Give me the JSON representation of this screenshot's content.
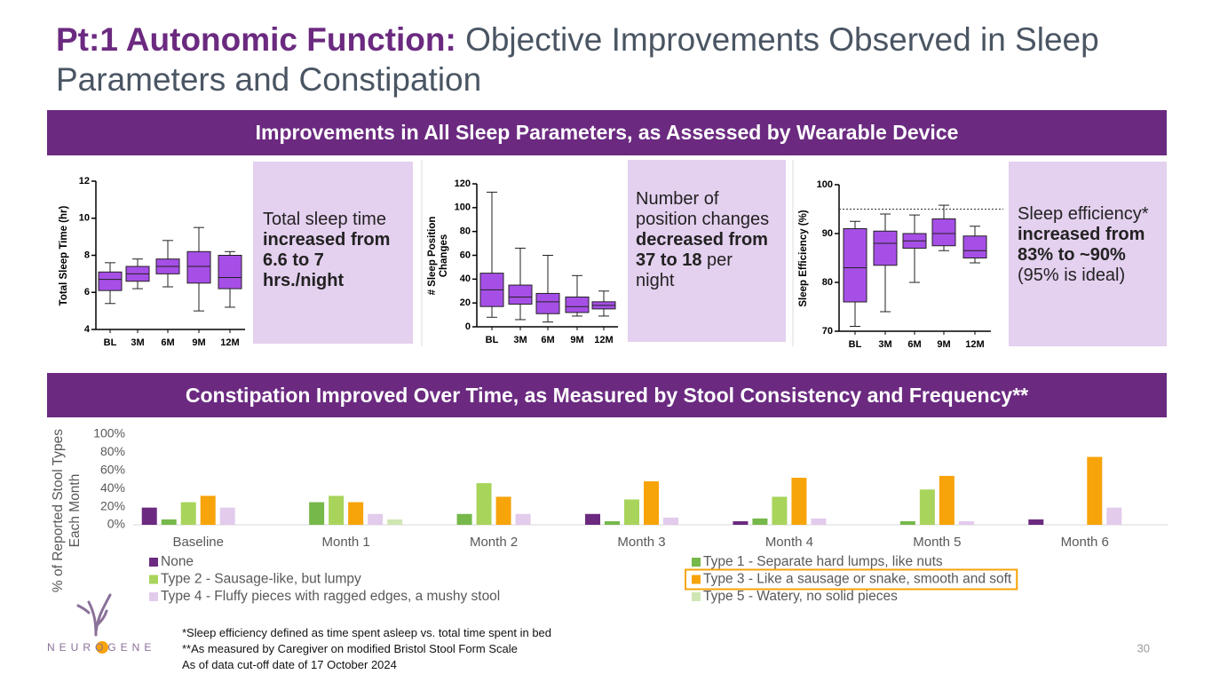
{
  "slide": {
    "title_bold": "Pt:1 Autonomic Function:",
    "title_rest": "Objective Improvements Observed in Sleep Parameters and Constipation",
    "banner_sleep": "Improvements in All Sleep Parameters, as Assessed by Wearable Device",
    "banner_constipation": "Constipation Improved Over Time, as Measured by Stool Consistency and Frequency**",
    "callouts": [
      {
        "runs": [
          {
            "text": "Total sleep time ",
            "style": "normal"
          },
          {
            "text": "increased from 6.6 to 7 hrs./night",
            "style": "bold"
          }
        ]
      },
      {
        "runs": [
          {
            "text": "Number of position changes ",
            "style": "normal"
          },
          {
            "text": "decreased from 37 to 18",
            "style": "bold"
          },
          {
            "text": " per night",
            "style": "normal"
          }
        ]
      },
      {
        "runs": [
          {
            "text": "Sleep efficiency* ",
            "style": "normal"
          },
          {
            "text": "increased from 83% to ~90%",
            "style": "bold"
          },
          {
            "text": " (95% is ideal)",
            "style": "normal"
          }
        ]
      }
    ],
    "footnotes": [
      "*Sleep efficiency defined as time spent asleep vs. total time spent in bed",
      "**As measured by Caregiver on modified Bristol Stool Form Scale",
      "As of data cut-off date of 17 October 2024"
    ],
    "page_number": "30",
    "logo": "NEUROGENE"
  },
  "chart_data": [
    {
      "type": "box",
      "y_label": "Total Sleep Time (hr)",
      "categories": [
        "BL",
        "3M",
        "6M",
        "9M",
        "12M"
      ],
      "color": "#a64fe6",
      "boxes": [
        {
          "min": 5.4,
          "q1": 6.1,
          "median": 6.7,
          "q3": 7.1,
          "max": 7.6
        },
        {
          "min": 6.2,
          "q1": 6.6,
          "median": 7.0,
          "q3": 7.4,
          "max": 7.8
        },
        {
          "min": 6.3,
          "q1": 7.0,
          "median": 7.4,
          "q3": 7.8,
          "max": 8.8
        },
        {
          "min": 5.0,
          "q1": 6.5,
          "median": 7.4,
          "q3": 8.2,
          "max": 9.5
        },
        {
          "min": 5.2,
          "q1": 6.2,
          "median": 6.8,
          "q3": 8.0,
          "max": 8.2
        }
      ],
      "ylim": [
        4,
        12
      ],
      "yticks": [
        4,
        6,
        8,
        10,
        12
      ]
    },
    {
      "type": "box",
      "y_label": "# Sleep Position Changes",
      "categories": [
        "BL",
        "3M",
        "6M",
        "9M",
        "12M"
      ],
      "color": "#a64fe6",
      "boxes": [
        {
          "min": 8,
          "q1": 17,
          "median": 31,
          "q3": 45,
          "max": 113
        },
        {
          "min": 6,
          "q1": 19,
          "median": 25,
          "q3": 35,
          "max": 66
        },
        {
          "min": 4,
          "q1": 11,
          "median": 21,
          "q3": 28,
          "max": 60
        },
        {
          "min": 9,
          "q1": 12,
          "median": 17,
          "q3": 25,
          "max": 43
        },
        {
          "min": 9,
          "q1": 15,
          "median": 18,
          "q3": 21,
          "max": 30
        }
      ],
      "ylim": [
        0,
        120
      ],
      "yticks": [
        0,
        20,
        40,
        60,
        80,
        100,
        120
      ]
    },
    {
      "type": "box",
      "y_label": "Sleep Efficiency (%)",
      "categories": [
        "BL",
        "3M",
        "6M",
        "9M",
        "12M"
      ],
      "color": "#a64fe6",
      "boxes": [
        {
          "min": 71,
          "q1": 76,
          "median": 83,
          "q3": 91,
          "max": 92.5
        },
        {
          "min": 74,
          "q1": 83.5,
          "median": 88,
          "q3": 90.5,
          "max": 94
        },
        {
          "min": 80,
          "q1": 87,
          "median": 88.5,
          "q3": 90,
          "max": 93.8
        },
        {
          "min": 86.5,
          "q1": 87.5,
          "median": 90,
          "q3": 93,
          "max": 95.8
        },
        {
          "min": 84,
          "q1": 85,
          "median": 86.5,
          "q3": 89.5,
          "max": 91.5
        }
      ],
      "reference_line": 95,
      "ylim": [
        70,
        100
      ],
      "yticks": [
        70,
        80,
        90,
        100
      ]
    },
    {
      "type": "bar",
      "y_label": "% of Reported Stool Types Each Month",
      "categories": [
        "Baseline",
        "Month 1",
        "Month 2",
        "Month 3",
        "Month 4",
        "Month 5",
        "Month 6"
      ],
      "series": [
        {
          "name": "None",
          "color": "#6b2a80",
          "values": [
            19,
            0,
            0,
            12,
            4,
            0,
            6
          ]
        },
        {
          "name": "Type 1 - Separate hard lumps, like nuts",
          "color": "#76b84a",
          "values": [
            6,
            25,
            12,
            4,
            7,
            4,
            0
          ]
        },
        {
          "name": "Type 2 - Sausage-like, but lumpy",
          "color": "#a8d45c",
          "values": [
            25,
            32,
            46,
            28,
            31,
            39,
            0
          ]
        },
        {
          "name": "Type 3 - Like a sausage or snake, smooth and soft",
          "color": "#f7a30a",
          "values": [
            32,
            25,
            31,
            48,
            52,
            54,
            75
          ],
          "highlighted": true
        },
        {
          "name": "Type 4 - Fluffy pieces with ragged edges, a mushy stool",
          "color": "#e3cbec",
          "values": [
            19,
            12,
            12,
            8,
            7,
            4,
            19
          ]
        },
        {
          "name": "Type 5 - Watery, no solid pieces",
          "color": "#cfe6b3",
          "values": [
            0,
            6,
            0,
            0,
            0,
            0,
            0
          ]
        }
      ],
      "ylim": [
        0,
        100
      ],
      "yticks": [
        {
          "value": 0,
          "label": "0%"
        },
        {
          "value": 20,
          "label": "20%"
        },
        {
          "value": 40,
          "label": "40%"
        },
        {
          "value": 60,
          "label": "60%"
        },
        {
          "value": 80,
          "label": "80%"
        },
        {
          "value": 100,
          "label": "100%"
        }
      ]
    }
  ]
}
